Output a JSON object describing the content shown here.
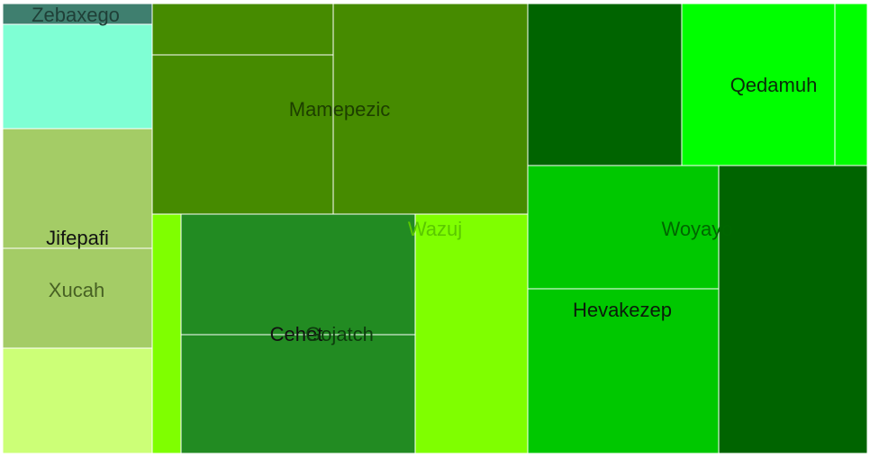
{
  "chart_data": {
    "type": "treemap",
    "labels": [
      {
        "name": "Zebaxego",
        "color": "#3f7f6f",
        "text_color": "#1f3f37"
      },
      {
        "name": "Jifepafi",
        "color": "#a4cc66",
        "text_color": "#111111"
      },
      {
        "name": "Xucah",
        "color": "#a4cc66",
        "text_color": "#476123"
      },
      {
        "name": "Mamepezic",
        "color": "#468b00",
        "text_color": "#1d3e00"
      },
      {
        "name": "Wazuj",
        "color": "#7fff00",
        "text_color": "#5ac800"
      },
      {
        "name": "Cehet",
        "color": "#228b22",
        "text_color": "#111111"
      },
      {
        "name": "Gojatch",
        "color": "#228b22",
        "text_color": "#0e3d0e"
      },
      {
        "name": "Qedamuh",
        "color": "#00ff00",
        "text_color": "#0a2a0a"
      },
      {
        "name": "Woyayo",
        "color": "#00c800",
        "text_color": "#006600"
      },
      {
        "name": "Hevakezep",
        "color": "#00c800",
        "text_color": "#0b1b0b"
      }
    ],
    "background_color": "#ffffff",
    "border_color": "#ffffff"
  }
}
